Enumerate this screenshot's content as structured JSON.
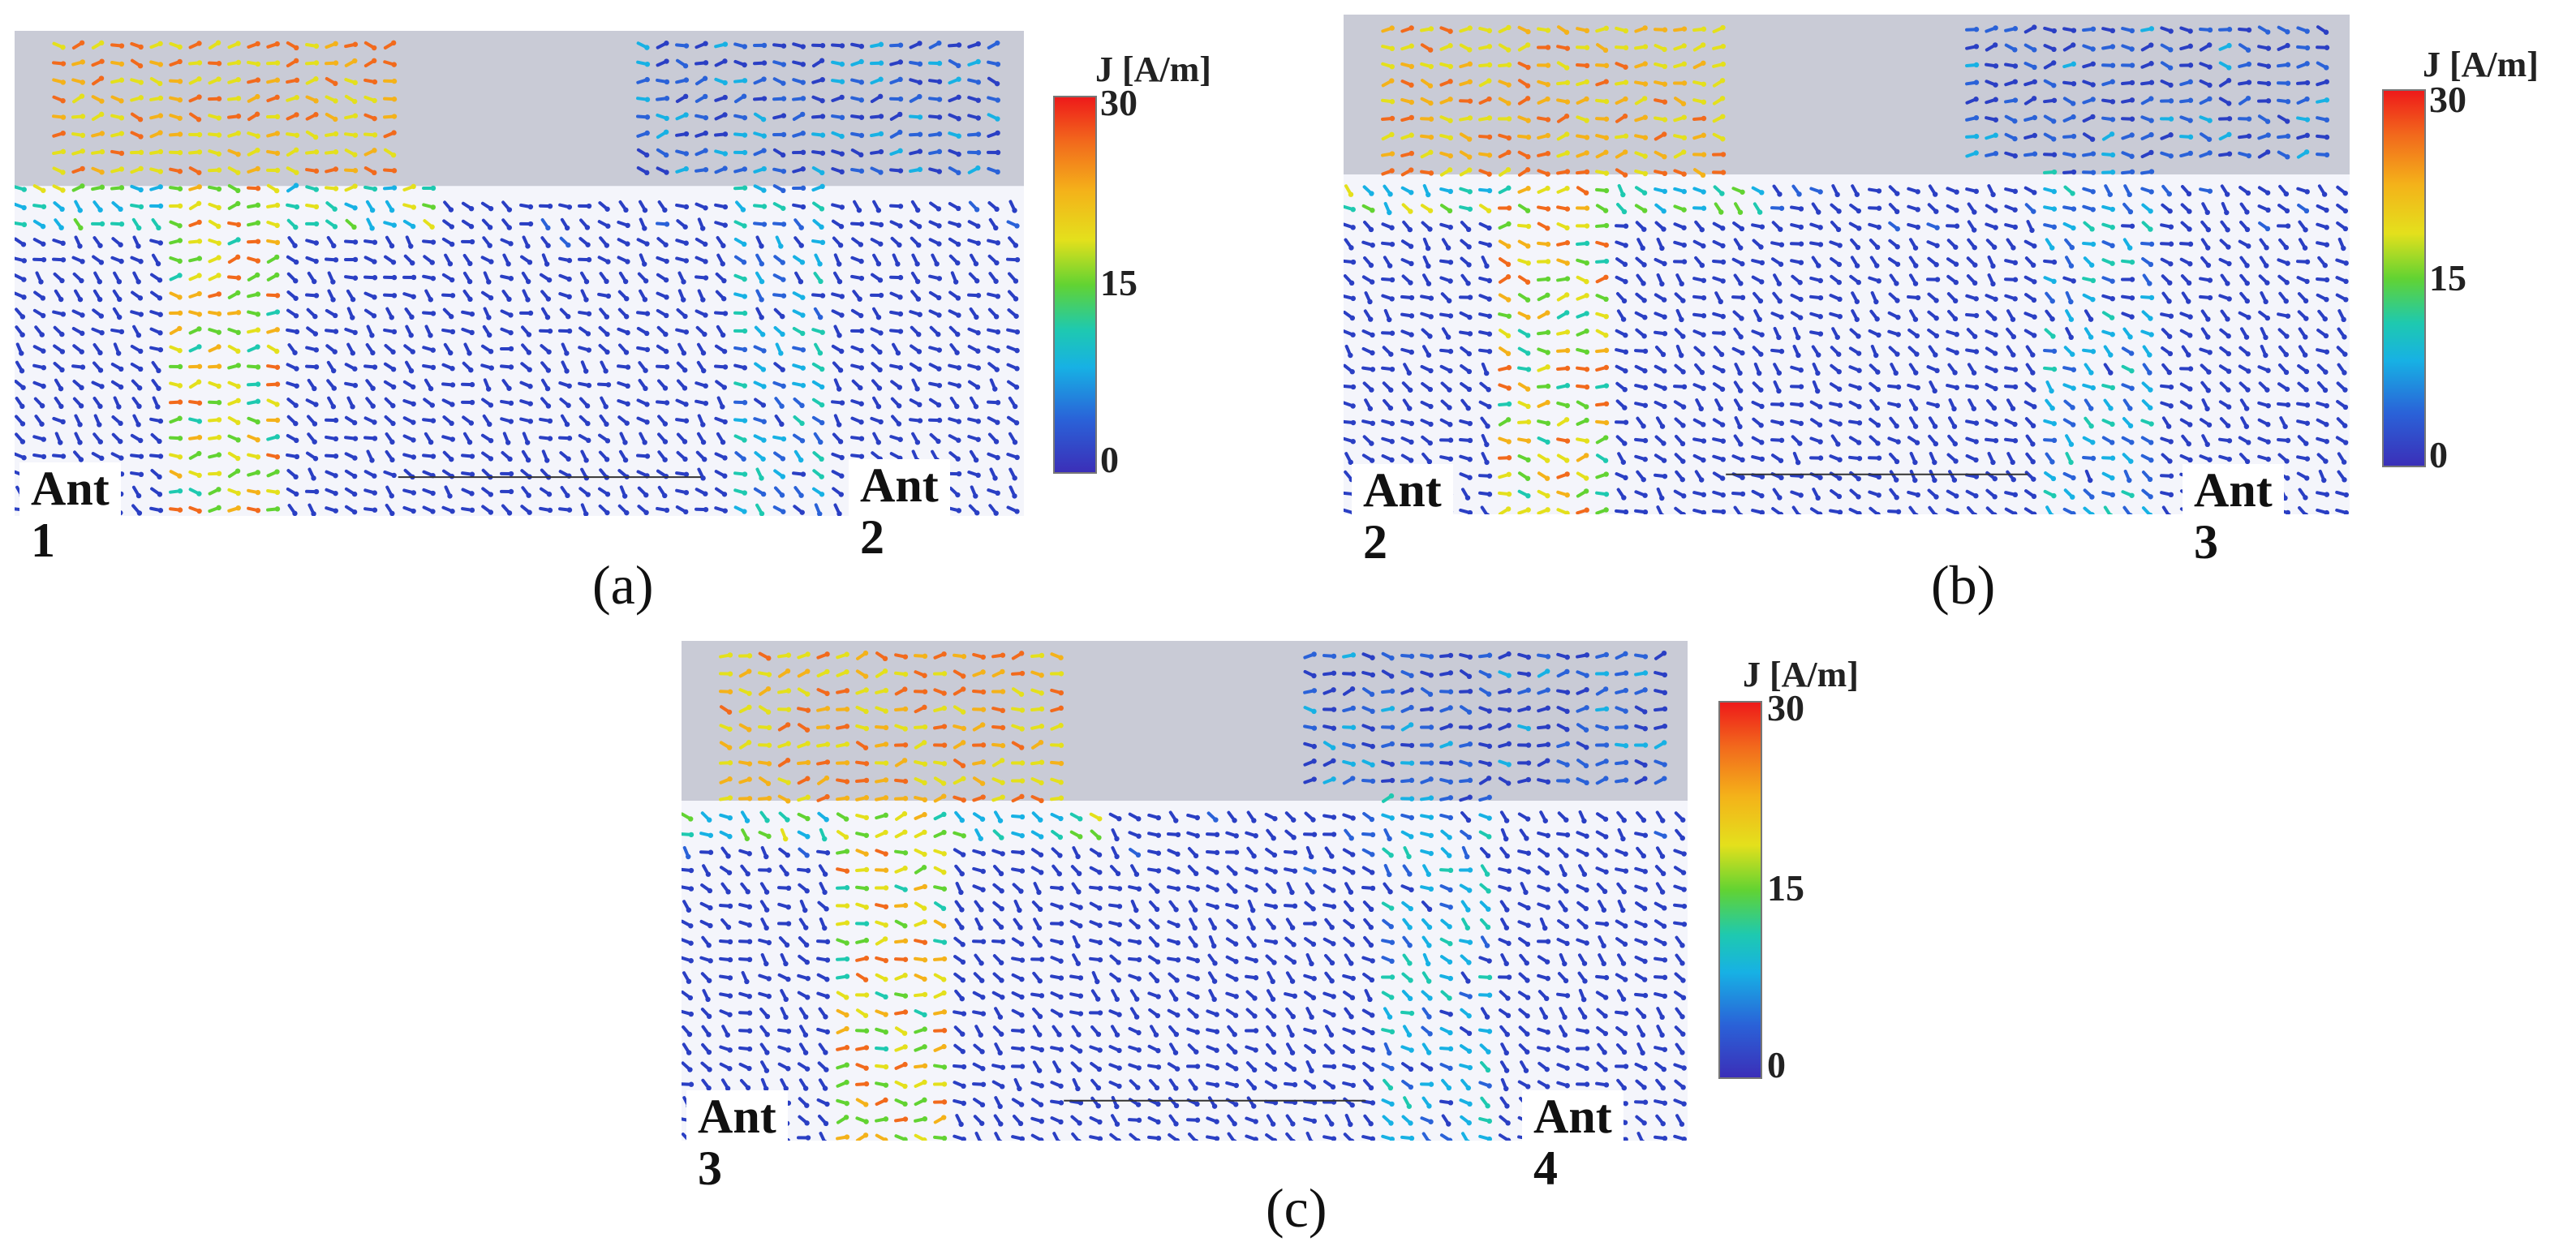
{
  "panels": [
    {
      "caption": "(a)",
      "left_label": "Ant 1",
      "right_label": "Ant 2",
      "left_excited": true
    },
    {
      "caption": "(b)",
      "left_label": "Ant 2",
      "right_label": "Ant 3",
      "left_excited": true
    },
    {
      "caption": "(c)",
      "left_label": "Ant 3",
      "right_label": "Ant 4",
      "left_excited": true
    }
  ],
  "colorbar": {
    "title": "J [A/m]",
    "max": "30",
    "mid": "15",
    "min": "0"
  },
  "colors": {
    "background_gray": "#c9cbd6",
    "high_current": "#ee1a1a",
    "mid_current": "#62d332",
    "low_current": "#2a3fc4"
  }
}
